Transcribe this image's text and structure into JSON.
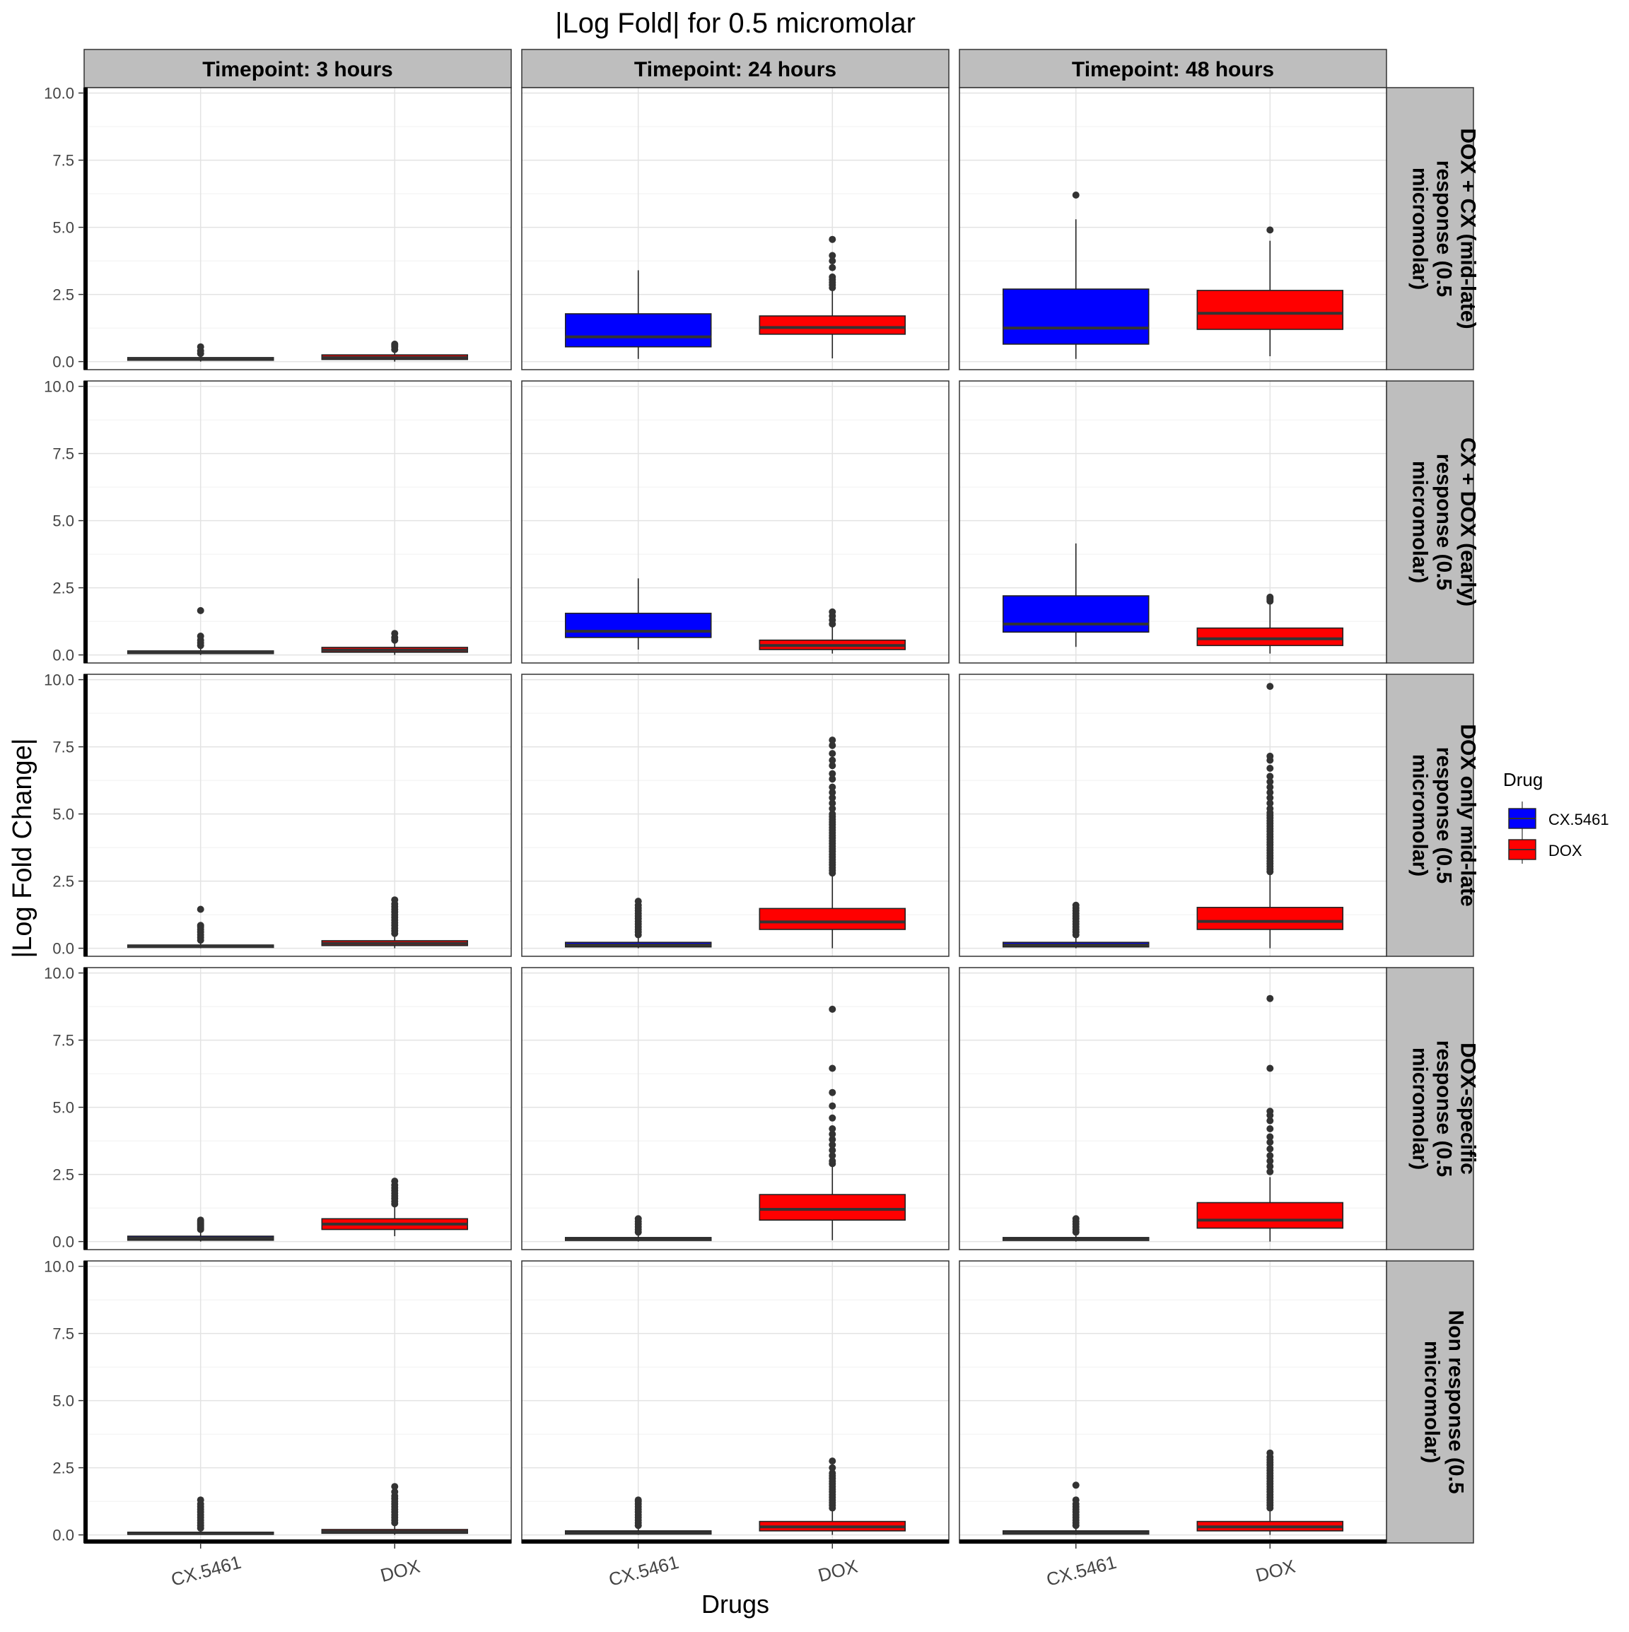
{
  "chart_data": {
    "type": "boxplot",
    "title": "|Log Fold| for 0.5 micromolar",
    "xlabel": "Drugs",
    "ylabel": "|Log Fold Change|",
    "ylim": [
      -0.3,
      10.2
    ],
    "yticks": [
      "0.0",
      "2.5",
      "5.0",
      "7.5",
      "10.0"
    ],
    "categories": [
      "CX.5461",
      "DOX"
    ],
    "columns": [
      "Timepoint: 3 hours",
      "Timepoint: 24 hours",
      "Timepoint: 48 hours"
    ],
    "rows": [
      "DOX + CX (mid-late) response (0.5 micromolar)",
      "CX + DOX (early) response (0.5 micromolar)",
      "DOX only mid-late response (0.5 micromolar)",
      "DOX-specific response (0.5 micromolar)",
      "Non response (0.5 micromolar)"
    ],
    "row_label_lines": [
      [
        "DOX + CX (mid-late)",
        "response (0.5",
        "micromolar)"
      ],
      [
        "CX + DOX (early)",
        "response (0.5",
        "micromolar)"
      ],
      [
        "DOX only mid-late",
        "response (0.5",
        "micromolar)"
      ],
      [
        "DOX-specific",
        "response (0.5",
        "micromolar)"
      ],
      [
        "Non response (0.5",
        "micromolar)"
      ]
    ],
    "legend": {
      "title": "Drug",
      "position": "right",
      "entries": [
        {
          "name": "CX.5461",
          "color": "#0000ff"
        },
        {
          "name": "DOX",
          "color": "#ff0000"
        }
      ]
    },
    "colors": {
      "CX.5461": "#0000ff",
      "DOX": "#ff0000"
    },
    "grid": true,
    "panels": [
      [
        {
          "CX.5461": {
            "min": 0.0,
            "q1": 0.05,
            "median": 0.1,
            "q3": 0.15,
            "max": 0.25,
            "outliers": [
              0.3,
              0.4,
              0.55
            ]
          },
          "DOX": {
            "min": 0.0,
            "q1": 0.08,
            "median": 0.15,
            "q3": 0.25,
            "max": 0.4,
            "outliers": [
              0.45,
              0.55,
              0.6,
              0.65
            ]
          }
        },
        {
          "CX.5461": {
            "min": 0.1,
            "q1": 0.55,
            "median": 0.92,
            "q3": 1.78,
            "max": 3.4,
            "outliers": []
          },
          "DOX": {
            "min": 0.12,
            "q1": 1.02,
            "median": 1.27,
            "q3": 1.7,
            "max": 2.65,
            "outliers": [
              2.75,
              2.85,
              2.95,
              3.05,
              3.15,
              3.5,
              3.75,
              3.95,
              4.55
            ]
          }
        },
        {
          "CX.5461": {
            "min": 0.1,
            "q1": 0.65,
            "median": 1.25,
            "q3": 2.7,
            "max": 5.3,
            "outliers": [
              6.2
            ]
          },
          "DOX": {
            "min": 0.2,
            "q1": 1.2,
            "median": 1.8,
            "q3": 2.65,
            "max": 4.5,
            "outliers": [
              4.9
            ]
          }
        }
      ],
      [
        {
          "CX.5461": {
            "min": 0.0,
            "q1": 0.05,
            "median": 0.1,
            "q3": 0.15,
            "max": 0.3,
            "outliers": [
              0.35,
              0.45,
              0.55,
              0.7,
              1.65
            ]
          },
          "DOX": {
            "min": 0.0,
            "q1": 0.1,
            "median": 0.18,
            "q3": 0.28,
            "max": 0.45,
            "outliers": [
              0.55,
              0.65,
              0.8
            ]
          }
        },
        {
          "CX.5461": {
            "min": 0.2,
            "q1": 0.65,
            "median": 0.88,
            "q3": 1.55,
            "max": 2.85,
            "outliers": []
          },
          "DOX": {
            "min": 0.05,
            "q1": 0.2,
            "median": 0.35,
            "q3": 0.55,
            "max": 1.05,
            "outliers": [
              1.15,
              1.3,
              1.45,
              1.6
            ]
          }
        },
        {
          "CX.5461": {
            "min": 0.3,
            "q1": 0.85,
            "median": 1.15,
            "q3": 2.2,
            "max": 4.15,
            "outliers": []
          },
          "DOX": {
            "min": 0.05,
            "q1": 0.35,
            "median": 0.6,
            "q3": 1.0,
            "max": 1.9,
            "outliers": [
              2.0,
              2.05,
              2.1,
              2.15
            ]
          }
        }
      ],
      [
        {
          "CX.5461": {
            "min": 0.0,
            "q1": 0.03,
            "median": 0.07,
            "q3": 0.12,
            "max": 0.25,
            "outliers": [
              0.3,
              0.4,
              0.5,
              0.6,
              0.7,
              0.8,
              0.85,
              1.45
            ]
          },
          "DOX": {
            "min": 0.0,
            "q1": 0.1,
            "median": 0.18,
            "q3": 0.28,
            "max": 0.5,
            "outliers": [
              0.55,
              0.65,
              0.75,
              0.85,
              0.95,
              1.05,
              1.15,
              1.25,
              1.35,
              1.45,
              1.55,
              1.65,
              1.8
            ]
          }
        },
        {
          "CX.5461": {
            "min": 0.0,
            "q1": 0.05,
            "median": 0.12,
            "q3": 0.22,
            "max": 0.45,
            "outliers": [
              0.5,
              0.6,
              0.7,
              0.8,
              0.9,
              1.0,
              1.1,
              1.2,
              1.3,
              1.4,
              1.5,
              1.6,
              1.75
            ]
          },
          "DOX": {
            "min": 0.0,
            "q1": 0.7,
            "median": 0.98,
            "q3": 1.48,
            "max": 2.7,
            "outliers": [
              2.8,
              2.9,
              3.0,
              3.1,
              3.2,
              3.3,
              3.4,
              3.5,
              3.6,
              3.7,
              3.8,
              3.9,
              4.0,
              4.1,
              4.2,
              4.3,
              4.4,
              4.5,
              4.6,
              4.7,
              4.8,
              4.9,
              5.0,
              5.2,
              5.4,
              5.6,
              5.8,
              6.0,
              6.3,
              6.5,
              6.8,
              7.0,
              7.25,
              7.55,
              7.75
            ]
          }
        },
        {
          "CX.5461": {
            "min": 0.0,
            "q1": 0.05,
            "median": 0.12,
            "q3": 0.22,
            "max": 0.45,
            "outliers": [
              0.5,
              0.6,
              0.7,
              0.8,
              0.9,
              1.0,
              1.1,
              1.2,
              1.3,
              1.4,
              1.5,
              1.6
            ]
          },
          "DOX": {
            "min": 0.0,
            "q1": 0.7,
            "median": 1.0,
            "q3": 1.52,
            "max": 2.75,
            "outliers": [
              2.85,
              2.95,
              3.05,
              3.15,
              3.25,
              3.35,
              3.45,
              3.55,
              3.65,
              3.75,
              3.85,
              3.95,
              4.05,
              4.15,
              4.25,
              4.35,
              4.45,
              4.55,
              4.65,
              4.75,
              4.85,
              4.95,
              5.05,
              5.2,
              5.4,
              5.6,
              5.8,
              6.0,
              6.2,
              6.4,
              6.7,
              7.0,
              7.15,
              9.75
            ]
          }
        }
      ],
      [
        {
          "CX.5461": {
            "min": 0.0,
            "q1": 0.05,
            "median": 0.12,
            "q3": 0.2,
            "max": 0.4,
            "outliers": [
              0.45,
              0.5,
              0.55,
              0.6,
              0.65,
              0.7,
              0.75,
              0.8
            ]
          },
          "DOX": {
            "min": 0.2,
            "q1": 0.45,
            "median": 0.65,
            "q3": 0.85,
            "max": 1.3,
            "outliers": [
              1.4,
              1.5,
              1.6,
              1.7,
              1.8,
              1.9,
              2.0,
              2.1,
              2.25
            ]
          }
        },
        {
          "CX.5461": {
            "min": 0.0,
            "q1": 0.04,
            "median": 0.08,
            "q3": 0.15,
            "max": 0.3,
            "outliers": [
              0.35,
              0.45,
              0.55,
              0.65,
              0.75,
              0.85
            ]
          },
          "DOX": {
            "min": 0.05,
            "q1": 0.8,
            "median": 1.2,
            "q3": 1.75,
            "max": 2.8,
            "outliers": [
              2.9,
              3.0,
              3.2,
              3.4,
              3.6,
              3.8,
              4.0,
              4.2,
              4.6,
              5.05,
              5.55,
              6.45,
              8.65
            ]
          }
        },
        {
          "CX.5461": {
            "min": 0.0,
            "q1": 0.04,
            "median": 0.08,
            "q3": 0.15,
            "max": 0.3,
            "outliers": [
              0.35,
              0.45,
              0.55,
              0.65,
              0.75,
              0.85
            ]
          },
          "DOX": {
            "min": 0.0,
            "q1": 0.5,
            "median": 0.8,
            "q3": 1.45,
            "max": 2.4,
            "outliers": [
              2.6,
              2.8,
              3.0,
              3.2,
              3.45,
              3.7,
              3.9,
              4.2,
              4.5,
              4.7,
              4.85,
              6.45,
              9.05
            ]
          }
        }
      ],
      [
        {
          "CX.5461": {
            "min": 0.0,
            "q1": 0.02,
            "median": 0.05,
            "q3": 0.1,
            "max": 0.2,
            "outliers": [
              0.25,
              0.35,
              0.45,
              0.55,
              0.65,
              0.75,
              0.85,
              0.95,
              1.05,
              1.15,
              1.3
            ]
          },
          "DOX": {
            "min": 0.0,
            "q1": 0.06,
            "median": 0.12,
            "q3": 0.2,
            "max": 0.4,
            "outliers": [
              0.45,
              0.55,
              0.65,
              0.75,
              0.85,
              0.95,
              1.05,
              1.15,
              1.25,
              1.35,
              1.45,
              1.6,
              1.8
            ]
          }
        },
        {
          "CX.5461": {
            "min": 0.0,
            "q1": 0.03,
            "median": 0.08,
            "q3": 0.15,
            "max": 0.3,
            "outliers": [
              0.35,
              0.45,
              0.55,
              0.65,
              0.75,
              0.85,
              0.95,
              1.05,
              1.15,
              1.25,
              1.3
            ]
          },
          "DOX": {
            "min": 0.0,
            "q1": 0.15,
            "median": 0.3,
            "q3": 0.5,
            "max": 0.9,
            "outliers": [
              1.0,
              1.1,
              1.2,
              1.3,
              1.4,
              1.5,
              1.6,
              1.7,
              1.8,
              1.9,
              2.0,
              2.1,
              2.2,
              2.3,
              2.5,
              2.75
            ]
          }
        },
        {
          "CX.5461": {
            "min": 0.0,
            "q1": 0.03,
            "median": 0.08,
            "q3": 0.15,
            "max": 0.3,
            "outliers": [
              0.35,
              0.45,
              0.55,
              0.65,
              0.75,
              0.85,
              0.95,
              1.05,
              1.15,
              1.3,
              1.85
            ]
          },
          "DOX": {
            "min": 0.0,
            "q1": 0.15,
            "median": 0.3,
            "q3": 0.5,
            "max": 0.9,
            "outliers": [
              1.0,
              1.1,
              1.2,
              1.3,
              1.4,
              1.5,
              1.6,
              1.7,
              1.8,
              1.9,
              2.0,
              2.1,
              2.2,
              2.3,
              2.4,
              2.5,
              2.6,
              2.7,
              2.8,
              2.9,
              3.05
            ]
          }
        }
      ]
    ]
  }
}
